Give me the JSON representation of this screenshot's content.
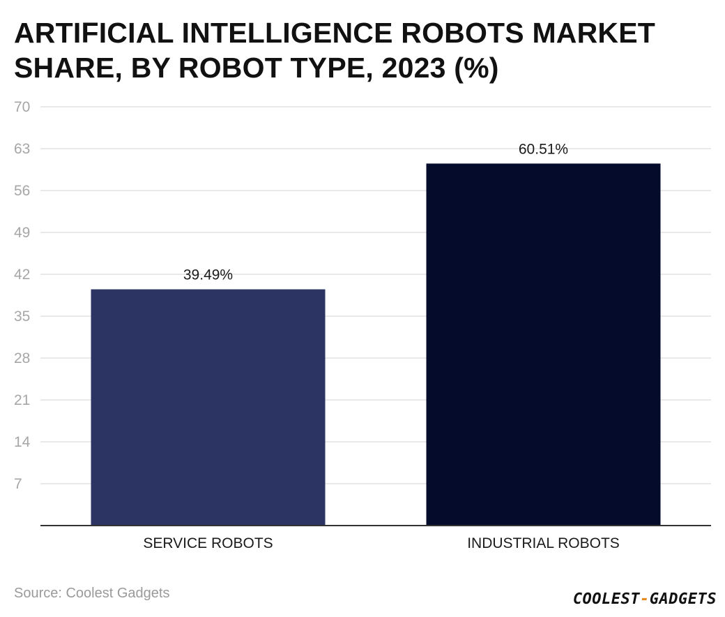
{
  "header": {
    "title": "ARTIFICIAL INTELLIGENCE ROBOTS MARKET SHARE, BY ROBOT TYPE, 2023 (%)"
  },
  "chart_data": {
    "type": "bar",
    "title": "ARTIFICIAL INTELLIGENCE ROBOTS MARKET SHARE, BY ROBOT TYPE, 2023 (%)",
    "xlabel": "",
    "ylabel": "",
    "categories": [
      "SERVICE ROBOTS",
      "INDUSTRIAL ROBOTS"
    ],
    "values": [
      39.49,
      60.51
    ],
    "data_labels": [
      "39.49%",
      "60.51%"
    ],
    "bar_colors": [
      "#2b3462",
      "#050b2a"
    ],
    "ylim": [
      0,
      70
    ],
    "yticks": [
      7,
      14,
      21,
      28,
      35,
      42,
      49,
      56,
      63,
      70
    ],
    "grid": true,
    "legend": "none"
  },
  "footer": {
    "source": "Source: Coolest Gadgets",
    "logo_part1": "COOLEST",
    "logo_dash": "-",
    "logo_part2": "GADGETS"
  },
  "colors": {
    "grid": "#e2e2e2",
    "axis": "#333333",
    "tick_label": "#a6a6a6",
    "accent": "#e58a1f"
  }
}
